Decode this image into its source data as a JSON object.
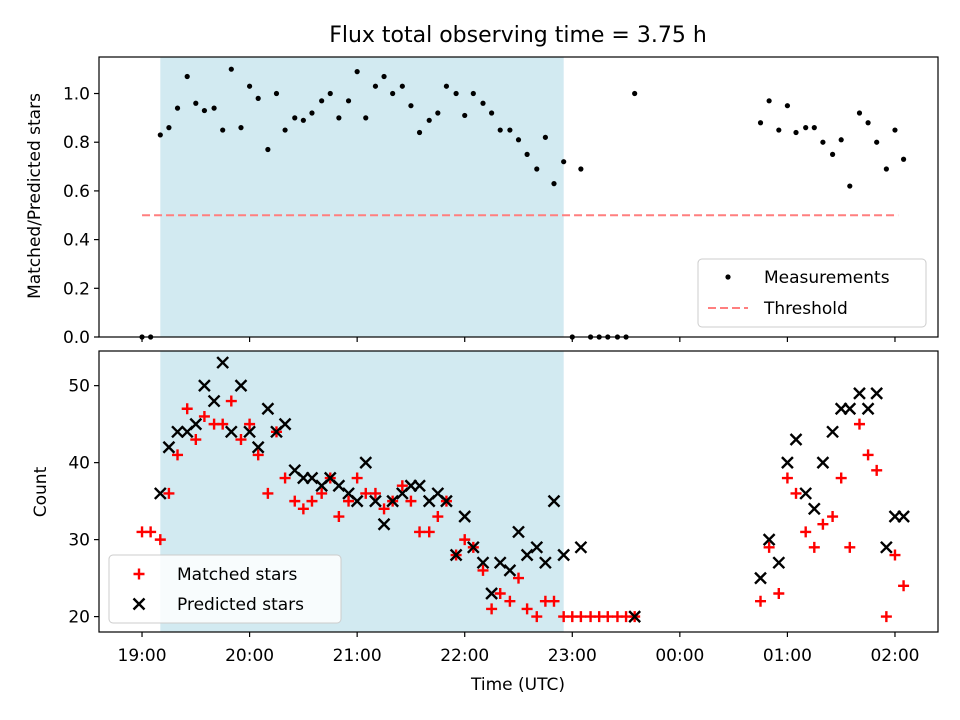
{
  "figure": {
    "title": "Flux total observing time = 3.75 h"
  },
  "x_tick_labels": [
    "19:00",
    "20:00",
    "21:00",
    "22:00",
    "23:00",
    "00:00",
    "01:00",
    "02:00"
  ],
  "colors": {
    "shade": "#add8e6",
    "measurement": "#000000",
    "threshold": "#ff7f7f",
    "matched": "#ff0000",
    "predicted": "#000000"
  },
  "chart_data": [
    {
      "type": "scatter",
      "ylabel": "Matched/Predicted stars",
      "xlabel": "",
      "xlim": [
        -0.4,
        7.4
      ],
      "ylim": [
        0,
        1.15
      ],
      "yticks": [
        0.0,
        0.2,
        0.4,
        0.6,
        0.8,
        1.0
      ],
      "ytick_labels": [
        "0.0",
        "0.2",
        "0.4",
        "0.6",
        "0.8",
        "1.0"
      ],
      "shaded_span": [
        0.17,
        3.92
      ],
      "threshold": {
        "value": 0.5,
        "x_range": [
          0,
          7.03
        ]
      },
      "legend": {
        "position": "lower right",
        "entries": [
          "Measurements",
          "Threshold"
        ]
      },
      "series": [
        {
          "name": "Measurements",
          "x": [
            0.0,
            0.08,
            0.17,
            0.25,
            0.33,
            0.42,
            0.5,
            0.58,
            0.67,
            0.75,
            0.83,
            0.92,
            1.0,
            1.08,
            1.17,
            1.25,
            1.33,
            1.42,
            1.5,
            1.58,
            1.67,
            1.75,
            1.83,
            1.92,
            2.0,
            2.08,
            2.17,
            2.25,
            2.33,
            2.42,
            2.5,
            2.58,
            2.67,
            2.75,
            2.83,
            2.92,
            3.0,
            3.08,
            3.17,
            3.25,
            3.33,
            3.42,
            3.5,
            3.58,
            3.67,
            3.75,
            3.83,
            3.92,
            4.0,
            4.08,
            4.17,
            4.25,
            4.33,
            4.42,
            4.5,
            4.58,
            5.75,
            5.83,
            5.92,
            6.0,
            6.08,
            6.17,
            6.25,
            6.33,
            6.42,
            6.5,
            6.58,
            6.67,
            6.75,
            6.83,
            6.92,
            7.0,
            7.08
          ],
          "y": [
            0.0,
            0.0,
            0.83,
            0.86,
            0.94,
            1.07,
            0.96,
            0.93,
            0.94,
            0.85,
            1.1,
            0.86,
            1.03,
            0.98,
            0.77,
            1.0,
            0.85,
            0.9,
            0.89,
            0.92,
            0.97,
            1.0,
            0.9,
            0.97,
            1.09,
            0.9,
            1.03,
            1.07,
            1.0,
            1.03,
            0.95,
            0.84,
            0.89,
            0.92,
            1.03,
            1.0,
            0.91,
            1.0,
            0.96,
            0.92,
            0.85,
            0.85,
            0.81,
            0.75,
            0.69,
            0.82,
            0.63,
            0.72,
            0.0,
            0.69,
            0.0,
            0.0,
            0.0,
            0.0,
            0.0,
            1.0,
            0.88,
            0.97,
            0.85,
            0.95,
            0.84,
            0.86,
            0.86,
            0.8,
            0.75,
            0.81,
            0.62,
            0.92,
            0.88,
            0.8,
            0.69,
            0.85,
            0.73
          ]
        }
      ]
    },
    {
      "type": "scatter",
      "ylabel": "Count",
      "xlabel": "Time (UTC)",
      "xlim": [
        -0.4,
        7.4
      ],
      "ylim": [
        18,
        54.5
      ],
      "yticks": [
        20,
        30,
        40,
        50
      ],
      "ytick_labels": [
        "20",
        "30",
        "40",
        "50"
      ],
      "shaded_span": [
        0.17,
        3.92
      ],
      "legend": {
        "position": "lower left",
        "entries": [
          "Matched stars",
          "Predicted stars"
        ]
      },
      "series": [
        {
          "name": "Matched stars",
          "x": [
            0.0,
            0.08,
            0.17,
            0.25,
            0.33,
            0.42,
            0.5,
            0.58,
            0.67,
            0.75,
            0.83,
            0.92,
            1.0,
            1.08,
            1.17,
            1.25,
            1.33,
            1.42,
            1.5,
            1.58,
            1.67,
            1.75,
            1.83,
            1.92,
            2.0,
            2.08,
            2.17,
            2.25,
            2.33,
            2.42,
            2.5,
            2.58,
            2.67,
            2.75,
            2.83,
            2.92,
            3.0,
            3.08,
            3.17,
            3.25,
            3.33,
            3.42,
            3.5,
            3.58,
            3.67,
            3.75,
            3.83,
            3.92,
            4.0,
            4.08,
            4.17,
            4.25,
            4.33,
            4.42,
            4.5,
            4.58,
            5.75,
            5.83,
            5.92,
            6.0,
            6.08,
            6.17,
            6.25,
            6.33,
            6.42,
            6.5,
            6.58,
            6.67,
            6.75,
            6.83,
            6.92,
            7.0,
            7.08
          ],
          "y": [
            31,
            31,
            30,
            36,
            41,
            47,
            43,
            46,
            45,
            45,
            48,
            43,
            45,
            41,
            36,
            44,
            38,
            35,
            34,
            35,
            36,
            38,
            33,
            35,
            38,
            36,
            36,
            34,
            35,
            37,
            35,
            31,
            31,
            33,
            35,
            28,
            30,
            29,
            26,
            21,
            23,
            22,
            25,
            21,
            20,
            22,
            22,
            20,
            20,
            20,
            20,
            20,
            20,
            20,
            20,
            20,
            22,
            29,
            23,
            38,
            36,
            31,
            29,
            32,
            33,
            38,
            29,
            45,
            41,
            39,
            20,
            28,
            24
          ]
        },
        {
          "name": "Predicted stars",
          "x": [
            0.17,
            0.25,
            0.33,
            0.42,
            0.5,
            0.58,
            0.67,
            0.75,
            0.83,
            0.92,
            1.0,
            1.08,
            1.17,
            1.25,
            1.33,
            1.42,
            1.5,
            1.58,
            1.67,
            1.75,
            1.83,
            1.92,
            2.0,
            2.08,
            2.17,
            2.25,
            2.33,
            2.42,
            2.5,
            2.58,
            2.67,
            2.75,
            2.83,
            2.92,
            3.0,
            3.08,
            3.17,
            3.25,
            3.33,
            3.42,
            3.5,
            3.58,
            3.67,
            3.75,
            3.83,
            3.92,
            4.08,
            4.58,
            5.75,
            5.83,
            5.92,
            6.0,
            6.08,
            6.17,
            6.25,
            6.33,
            6.42,
            6.5,
            6.58,
            6.67,
            6.75,
            6.83,
            6.92,
            7.0,
            7.08
          ],
          "y": [
            36,
            42,
            44,
            44,
            45,
            50,
            48,
            53,
            44,
            50,
            44,
            42,
            47,
            44,
            45,
            39,
            38,
            38,
            37,
            38,
            37,
            36,
            35,
            40,
            35,
            32,
            35,
            36,
            37,
            37,
            35,
            36,
            35,
            28,
            33,
            29,
            27,
            23,
            27,
            26,
            31,
            28,
            29,
            27,
            35,
            28,
            29,
            20,
            25,
            30,
            27,
            40,
            43,
            36,
            34,
            40,
            44,
            47,
            47,
            49,
            47,
            49,
            29,
            33,
            33
          ]
        }
      ]
    }
  ]
}
